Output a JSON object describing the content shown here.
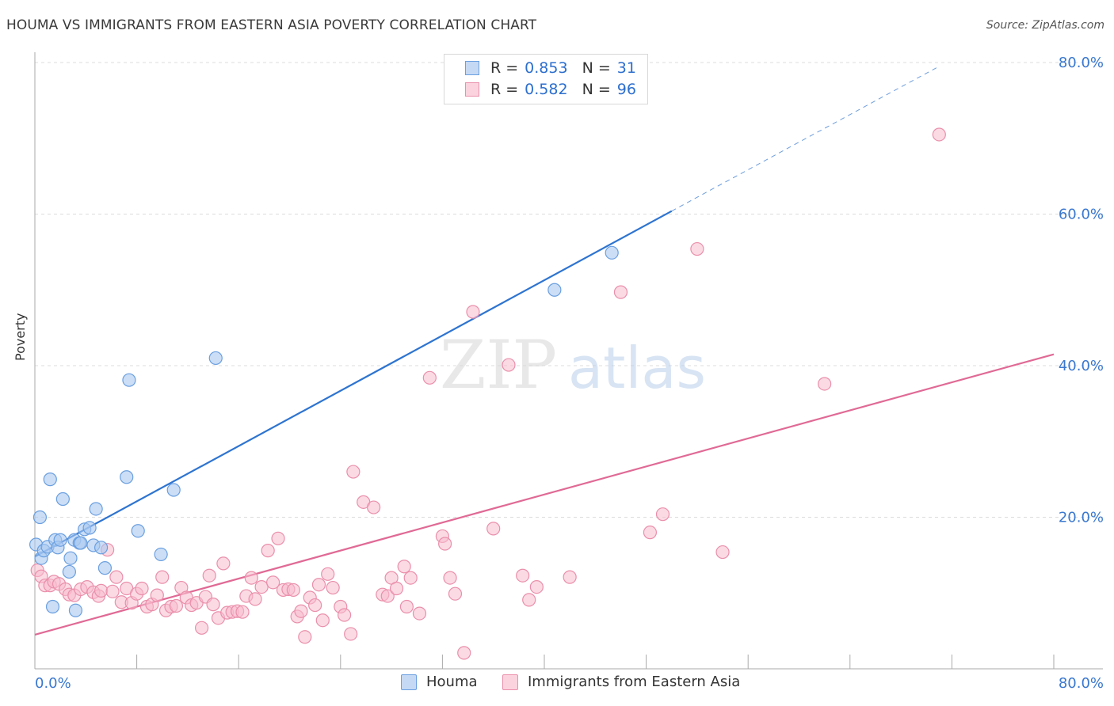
{
  "title": "HOUMA VS IMMIGRANTS FROM EASTERN ASIA POVERTY CORRELATION CHART",
  "source": "Source: ZipAtlas.com",
  "watermark": {
    "zip": "ZIP",
    "atlas": "atlas"
  },
  "colors": {
    "houma_fill": "#a9c8f0",
    "houma_stroke": "#6a9fe0",
    "houma_line": "#2e74d0",
    "imm_fill": "#f7bccd",
    "imm_stroke": "#ea8fab",
    "imm_line": "#e06a95",
    "tick_label": "#3a78cf",
    "grid": "#dcdcdc"
  },
  "legend_top": {
    "rows": [
      {
        "r_label": "R =",
        "r_value": "0.853",
        "n_label": "N =",
        "n_value": "31"
      },
      {
        "r_label": "R =",
        "r_value": "0.582",
        "n_label": "N =",
        "n_value": "96"
      }
    ]
  },
  "legend_bottom": [
    "Houma",
    "Immigrants from Eastern Asia"
  ],
  "chart_data": {
    "type": "scatter",
    "title": "HOUMA VS IMMIGRANTS FROM EASTERN ASIA POVERTY CORRELATION CHART",
    "xlabel": "",
    "ylabel": "Poverty",
    "xlim": [
      0,
      80
    ],
    "ylim": [
      0,
      80
    ],
    "x_tick_labels": [
      "0.0%",
      "80.0%"
    ],
    "y_ticks": [
      20,
      40,
      60,
      80
    ],
    "y_tick_labels": [
      "20.0%",
      "40.0%",
      "60.0%",
      "80.0%"
    ],
    "grid": "horizontal dashed",
    "series": [
      {
        "name": "Houma",
        "R": 0.853,
        "N": 31,
        "trend": {
          "x0": 0.0,
          "y0": 14.8,
          "x1": 50.0,
          "y1": 60.4,
          "dashed_to_x": 71.0,
          "dashed_to_y": 79.5
        },
        "points": [
          [
            0.1,
            16.4
          ],
          [
            0.4,
            20.0
          ],
          [
            0.5,
            14.6
          ],
          [
            0.7,
            15.6
          ],
          [
            1.0,
            16.1
          ],
          [
            1.2,
            25.0
          ],
          [
            1.4,
            8.2
          ],
          [
            1.6,
            17.0
          ],
          [
            1.8,
            16.0
          ],
          [
            2.0,
            17.0
          ],
          [
            2.2,
            22.4
          ],
          [
            2.7,
            12.8
          ],
          [
            2.8,
            14.6
          ],
          [
            3.1,
            17.0
          ],
          [
            3.2,
            7.7
          ],
          [
            3.5,
            16.6
          ],
          [
            3.6,
            16.6
          ],
          [
            3.9,
            18.4
          ],
          [
            4.3,
            18.6
          ],
          [
            4.6,
            16.3
          ],
          [
            4.8,
            21.1
          ],
          [
            5.2,
            16.0
          ],
          [
            5.5,
            13.3
          ],
          [
            7.2,
            25.3
          ],
          [
            7.4,
            38.1
          ],
          [
            8.1,
            18.2
          ],
          [
            9.9,
            15.1
          ],
          [
            10.9,
            23.6
          ],
          [
            14.2,
            41.0
          ],
          [
            40.8,
            50.0
          ],
          [
            45.3,
            54.9
          ]
        ]
      },
      {
        "name": "Immigrants from Eastern Asia",
        "R": 0.582,
        "N": 96,
        "trend": {
          "x0": 0.0,
          "y0": 4.5,
          "x1": 80.0,
          "y1": 41.5
        },
        "points": [
          [
            0.2,
            13.0
          ],
          [
            0.5,
            12.2
          ],
          [
            0.8,
            11.0
          ],
          [
            1.2,
            11.0
          ],
          [
            1.5,
            11.5
          ],
          [
            1.9,
            11.2
          ],
          [
            2.4,
            10.5
          ],
          [
            2.7,
            9.8
          ],
          [
            3.1,
            9.7
          ],
          [
            3.6,
            10.5
          ],
          [
            4.1,
            10.8
          ],
          [
            4.6,
            10.1
          ],
          [
            5.0,
            9.6
          ],
          [
            5.2,
            10.3
          ],
          [
            5.7,
            15.7
          ],
          [
            6.1,
            10.2
          ],
          [
            6.4,
            12.1
          ],
          [
            6.8,
            8.8
          ],
          [
            7.2,
            10.6
          ],
          [
            7.6,
            8.7
          ],
          [
            8.0,
            9.9
          ],
          [
            8.4,
            10.6
          ],
          [
            8.8,
            8.2
          ],
          [
            9.2,
            8.5
          ],
          [
            9.6,
            9.7
          ],
          [
            10.0,
            12.1
          ],
          [
            10.3,
            7.7
          ],
          [
            10.7,
            8.2
          ],
          [
            11.1,
            8.3
          ],
          [
            11.5,
            10.7
          ],
          [
            11.9,
            9.4
          ],
          [
            12.3,
            8.4
          ],
          [
            12.7,
            8.7
          ],
          [
            13.1,
            5.4
          ],
          [
            13.4,
            9.5
          ],
          [
            13.7,
            12.3
          ],
          [
            14.0,
            8.5
          ],
          [
            14.4,
            6.7
          ],
          [
            14.8,
            13.9
          ],
          [
            15.1,
            7.4
          ],
          [
            15.5,
            7.5
          ],
          [
            15.9,
            7.6
          ],
          [
            16.3,
            7.5
          ],
          [
            16.6,
            9.6
          ],
          [
            17.0,
            12.0
          ],
          [
            17.3,
            9.2
          ],
          [
            17.8,
            10.8
          ],
          [
            18.3,
            15.6
          ],
          [
            18.7,
            11.4
          ],
          [
            19.1,
            17.2
          ],
          [
            19.5,
            10.4
          ],
          [
            19.9,
            10.5
          ],
          [
            20.3,
            10.4
          ],
          [
            20.6,
            6.9
          ],
          [
            20.9,
            7.6
          ],
          [
            21.2,
            4.2
          ],
          [
            21.6,
            9.4
          ],
          [
            22.0,
            8.4
          ],
          [
            22.3,
            11.1
          ],
          [
            22.6,
            6.4
          ],
          [
            23.0,
            12.5
          ],
          [
            23.4,
            10.7
          ],
          [
            24.0,
            8.2
          ],
          [
            24.3,
            7.1
          ],
          [
            24.8,
            4.6
          ],
          [
            25.0,
            26.0
          ],
          [
            25.8,
            22.0
          ],
          [
            26.6,
            21.3
          ],
          [
            27.3,
            9.8
          ],
          [
            27.7,
            9.6
          ],
          [
            28.0,
            12.0
          ],
          [
            28.4,
            10.6
          ],
          [
            29.0,
            13.5
          ],
          [
            29.2,
            8.2
          ],
          [
            29.5,
            12.0
          ],
          [
            30.2,
            7.3
          ],
          [
            31.0,
            38.4
          ],
          [
            32.0,
            17.5
          ],
          [
            32.2,
            16.5
          ],
          [
            32.6,
            12.0
          ],
          [
            33.0,
            9.9
          ],
          [
            33.7,
            2.1
          ],
          [
            34.4,
            47.1
          ],
          [
            36.0,
            18.5
          ],
          [
            37.2,
            40.1
          ],
          [
            38.3,
            12.3
          ],
          [
            38.8,
            9.1
          ],
          [
            39.4,
            10.8
          ],
          [
            42.0,
            12.1
          ],
          [
            46.0,
            49.7
          ],
          [
            48.3,
            18.0
          ],
          [
            49.3,
            20.4
          ],
          [
            52.0,
            55.4
          ],
          [
            62.0,
            37.6
          ],
          [
            71.0,
            70.5
          ],
          [
            54.0,
            15.4
          ]
        ]
      }
    ]
  }
}
